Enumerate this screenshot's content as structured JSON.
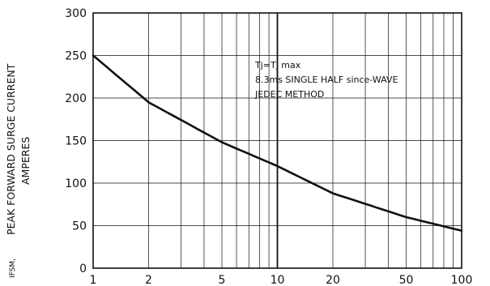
{
  "chart_data": {
    "type": "line",
    "x_scale": "log",
    "y_scale": "linear",
    "xlim": [
      1,
      100
    ],
    "ylim": [
      0,
      300
    ],
    "grid": true,
    "x_tick_labels": [
      "1",
      "2",
      "5",
      "10",
      "20",
      "50",
      "100"
    ],
    "x_tick_values": [
      1,
      2,
      5,
      10,
      20,
      50,
      100
    ],
    "y_tick_labels": [
      "0",
      "50",
      "100",
      "150",
      "200",
      "250",
      "300"
    ],
    "y_tick_values": [
      0,
      50,
      100,
      150,
      200,
      250,
      300
    ],
    "ylabel_prefix": "IFSM,",
    "ylabel_line1": "PEAK FORWARD SURGE CURRENT",
    "ylabel_line2": "AMPERES",
    "annotations": [
      "Tj=Tj max",
      "8.3ms SINGLE HALF since-WAVE",
      "JEDEC METHOD"
    ],
    "series": [
      {
        "x": [
          1,
          2,
          5,
          10,
          20,
          50,
          100
        ],
        "y": [
          250,
          195,
          148,
          120,
          88,
          60,
          44
        ]
      }
    ]
  }
}
